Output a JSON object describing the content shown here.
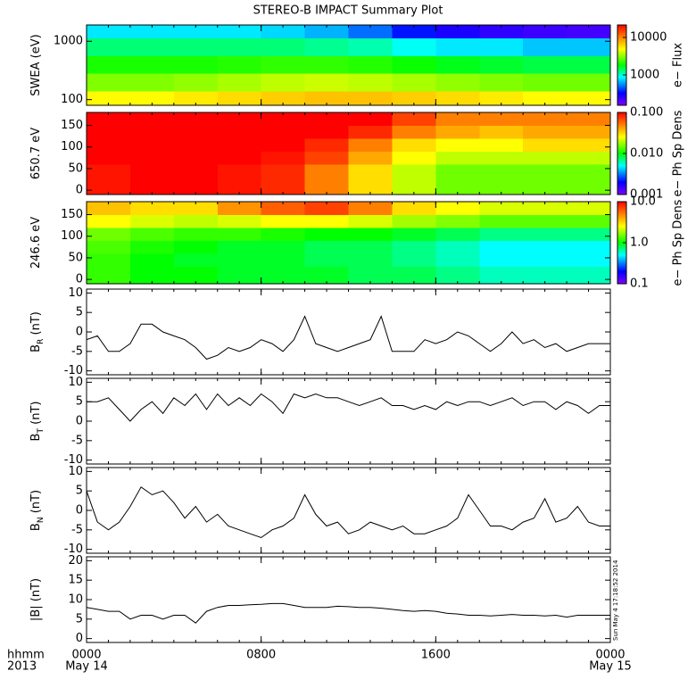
{
  "title": "STEREO-B IMPACT Summary Plot",
  "timestamp": "Sun May  4 17:18:52 2014",
  "x_axis": {
    "xlim": [
      0,
      24
    ],
    "xticks": [
      {
        "value": 0,
        "label": "0000"
      },
      {
        "value": 8,
        "label": "0800"
      },
      {
        "value": 16,
        "label": "1600"
      },
      {
        "value": 24,
        "label": "0000"
      }
    ],
    "date_labels": [
      {
        "value": 0,
        "label": "May 14"
      },
      {
        "value": 24,
        "label": "May 15"
      }
    ],
    "time_label": "hhmm",
    "year_label": "2013"
  },
  "x": [
    0,
    0.5,
    1,
    1.5,
    2,
    2.5,
    3,
    3.5,
    4,
    4.5,
    5,
    5.5,
    6,
    6.5,
    7,
    7.5,
    8,
    8.5,
    9,
    9.5,
    10,
    10.5,
    11,
    11.5,
    12,
    12.5,
    13,
    13.5,
    14,
    14.5,
    15,
    15.5,
    16,
    16.5,
    17,
    17.5,
    18,
    18.5,
    19,
    19.5,
    20,
    20.5,
    21,
    21.5,
    22,
    22.5,
    23,
    23.5,
    24
  ],
  "chart_data": [
    {
      "type": "heatmap",
      "ylabel": "SWEA (eV)",
      "log_y": true,
      "ylim": [
        80,
        1900
      ],
      "yticks": [
        100,
        1000
      ],
      "x": [
        1,
        3,
        5,
        7,
        9,
        11,
        13,
        15,
        17,
        19,
        21,
        23
      ],
      "y": [
        100,
        200,
        400,
        800,
        1600
      ],
      "values": [
        [
          5000,
          5000,
          5500,
          6000,
          6500,
          7000,
          7000,
          6500,
          6000,
          5500,
          5000,
          5000
        ],
        [
          3000,
          3000,
          3200,
          3500,
          3800,
          4000,
          3800,
          3500,
          3200,
          3000,
          2800,
          2800
        ],
        [
          2000,
          2000,
          2000,
          2100,
          2200,
          2200,
          2100,
          1900,
          1700,
          1600,
          1500,
          1500
        ],
        [
          1300,
          1300,
          1300,
          1300,
          1300,
          1200,
          1100,
          900,
          800,
          800,
          700,
          700
        ],
        [
          800,
          800,
          800,
          800,
          750,
          650,
          500,
          350,
          280,
          250,
          230,
          220
        ]
      ],
      "colorbar": {
        "label": "e− Flux",
        "log": true,
        "clim": [
          155,
          21500
        ],
        "ticks": [
          1000,
          10000
        ]
      }
    },
    {
      "type": "heatmap",
      "ylabel": "650.7 eV",
      "log_y": false,
      "ylim": [
        -10,
        180
      ],
      "yticks": [
        0,
        50,
        100,
        150
      ],
      "x": [
        1,
        3,
        5,
        7,
        9,
        11,
        13,
        15,
        17,
        19,
        21,
        23
      ],
      "y": [
        15,
        45,
        75,
        105,
        135,
        165
      ],
      "values": [
        [
          0.09,
          0.1,
          0.1,
          0.09,
          0.08,
          0.05,
          0.03,
          0.02,
          0.015,
          0.015,
          0.015,
          0.015
        ],
        [
          0.09,
          0.1,
          0.1,
          0.09,
          0.08,
          0.05,
          0.03,
          0.02,
          0.015,
          0.015,
          0.015,
          0.015
        ],
        [
          0.1,
          0.1,
          0.1,
          0.1,
          0.09,
          0.07,
          0.04,
          0.025,
          0.02,
          0.02,
          0.02,
          0.02
        ],
        [
          0.1,
          0.1,
          0.1,
          0.1,
          0.1,
          0.08,
          0.05,
          0.03,
          0.025,
          0.025,
          0.03,
          0.03
        ],
        [
          0.1,
          0.1,
          0.1,
          0.1,
          0.1,
          0.1,
          0.08,
          0.05,
          0.04,
          0.035,
          0.04,
          0.04
        ],
        [
          0.1,
          0.1,
          0.1,
          0.1,
          0.1,
          0.1,
          0.1,
          0.07,
          0.05,
          0.05,
          0.05,
          0.05
        ]
      ],
      "colorbar": {
        "label": "e− Ph Sp Dens",
        "log": true,
        "clim": [
          0.001,
          0.1
        ],
        "ticks": [
          {
            "value": 0.1,
            "label": "0.100"
          },
          {
            "value": 0.01,
            "label": "0.010"
          },
          {
            "value": 0.001,
            "label": "0.001"
          }
        ]
      }
    },
    {
      "type": "heatmap",
      "ylabel": "246.6 eV",
      "log_y": false,
      "ylim": [
        -10,
        180
      ],
      "yticks": [
        0,
        50,
        100,
        150
      ],
      "x": [
        1,
        3,
        5,
        7,
        9,
        11,
        13,
        15,
        17,
        19,
        21,
        23
      ],
      "y": [
        15,
        45,
        75,
        105,
        135,
        165
      ],
      "values": [
        [
          1.2,
          1.0,
          1.0,
          0.9,
          0.9,
          0.9,
          0.8,
          0.8,
          0.7,
          0.6,
          0.6,
          0.6
        ],
        [
          1.2,
          1.0,
          0.9,
          0.9,
          0.9,
          0.8,
          0.8,
          0.7,
          0.6,
          0.5,
          0.5,
          0.5
        ],
        [
          1.3,
          1.1,
          1.0,
          0.9,
          0.9,
          0.8,
          0.8,
          0.7,
          0.6,
          0.5,
          0.5,
          0.5
        ],
        [
          1.5,
          1.3,
          1.2,
          1.2,
          1.1,
          1.0,
          1.0,
          0.9,
          0.8,
          0.7,
          0.7,
          0.7
        ],
        [
          2.5,
          2.2,
          2.0,
          2.2,
          2.5,
          2.5,
          2.2,
          1.8,
          1.6,
          1.4,
          1.4,
          1.4
        ],
        [
          3.5,
          3.0,
          3.0,
          4.5,
          6,
          7,
          5,
          3,
          2.5,
          2.2,
          2.2,
          2.2
        ]
      ],
      "colorbar": {
        "label": "e− Ph Sp Dens",
        "log": true,
        "clim": [
          0.1,
          10
        ],
        "ticks": [
          {
            "value": 10,
            "label": "10.0"
          },
          {
            "value": 1,
            "label": "1.0"
          },
          {
            "value": 0.1,
            "label": "0.1"
          }
        ]
      }
    },
    {
      "type": "line",
      "ylabel": "B",
      "ylabel_sub": "R",
      "ylabel_unit": " (nT)",
      "color": "#000000",
      "ylim": [
        -11,
        11
      ],
      "yticks": [
        -10,
        -5,
        0,
        5,
        10
      ],
      "values": [
        -2,
        -1,
        -5,
        -5,
        -3,
        2,
        2,
        0,
        -1,
        -2,
        -4,
        -7,
        -6,
        -4,
        -5,
        -4,
        -2,
        -3,
        -5,
        -2,
        4,
        -3,
        -4,
        -5,
        -4,
        -3,
        -2,
        4,
        -5,
        -5,
        -5,
        -2,
        -3,
        -2,
        0,
        -1,
        -3,
        -5,
        -3,
        0,
        -3,
        -2,
        -4,
        -3,
        -5,
        -4,
        -3,
        -3,
        -3
      ]
    },
    {
      "type": "line",
      "ylabel": "B",
      "ylabel_sub": "T",
      "ylabel_unit": " (nT)",
      "color": "#000000",
      "ylim": [
        -11,
        11
      ],
      "yticks": [
        -10,
        -5,
        0,
        5,
        10
      ],
      "values": [
        5,
        5,
        6,
        3,
        0,
        3,
        5,
        2,
        6,
        4,
        7,
        3,
        7,
        4,
        6,
        4,
        7,
        5,
        2,
        7,
        6,
        7,
        6,
        6,
        5,
        4,
        5,
        6,
        4,
        4,
        3,
        4,
        3,
        5,
        4,
        5,
        5,
        4,
        5,
        6,
        4,
        5,
        5,
        3,
        5,
        4,
        2,
        4,
        4
      ]
    },
    {
      "type": "line",
      "ylabel": "B",
      "ylabel_sub": "N",
      "ylabel_unit": " (nT)",
      "color": "#000000",
      "ylim": [
        -11,
        11
      ],
      "yticks": [
        -10,
        -5,
        0,
        5,
        10
      ],
      "values": [
        5,
        -3,
        -5,
        -3,
        1,
        6,
        4,
        5,
        2,
        -2,
        1,
        -3,
        -1,
        -4,
        -5,
        -6,
        -7,
        -5,
        -4,
        -2,
        4,
        -1,
        -4,
        -3,
        -6,
        -5,
        -3,
        -4,
        -5,
        -4,
        -6,
        -6,
        -5,
        -4,
        -2,
        4,
        0,
        -4,
        -4,
        -5,
        -3,
        -2,
        3,
        -3,
        -2,
        1,
        -3,
        -4,
        -4
      ]
    },
    {
      "type": "line",
      "ylabel": "|B| (nT)",
      "color": "#000000",
      "ylim": [
        -1,
        21
      ],
      "yticks": [
        0,
        5,
        10,
        15,
        20
      ],
      "values": [
        8,
        7.5,
        7,
        7,
        5,
        6,
        6,
        5,
        6,
        6,
        4,
        7,
        8,
        8.5,
        8.5,
        8.7,
        8.8,
        9,
        9,
        8.5,
        8,
        8,
        8,
        8.3,
        8.2,
        8,
        8,
        7.8,
        7.5,
        7.2,
        7,
        7.2,
        7,
        6.5,
        6.3,
        6,
        6,
        5.8,
        6,
        6.2,
        6,
        6,
        5.8,
        6,
        5.5,
        6,
        6,
        6,
        6
      ]
    }
  ]
}
